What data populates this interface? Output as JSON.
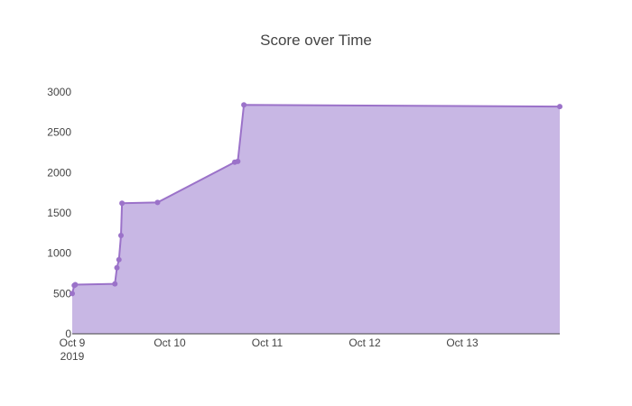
{
  "chart_data": {
    "type": "area",
    "title": "Score over Time",
    "xlabel": "",
    "ylabel": "",
    "xlim": [
      "2019-10-09T00:00",
      "2019-10-14T00:00"
    ],
    "ylim": [
      0,
      3000
    ],
    "grid": false,
    "legend": "none",
    "colors": {
      "line": "#9b72c9",
      "fill": "#c8b7e4",
      "marker": "#9b72c9",
      "axis": "#444444"
    },
    "x_ticks": [
      {
        "value": "2019-10-09T00:00",
        "label": "Oct 9",
        "sublabel": "2019"
      },
      {
        "value": "2019-10-10T00:00",
        "label": "Oct 10"
      },
      {
        "value": "2019-10-11T00:00",
        "label": "Oct 11"
      },
      {
        "value": "2019-10-12T00:00",
        "label": "Oct 12"
      },
      {
        "value": "2019-10-13T00:00",
        "label": "Oct 13"
      }
    ],
    "y_ticks": [
      0,
      500,
      1000,
      1500,
      2000,
      2500,
      3000
    ],
    "series": [
      {
        "points": [
          {
            "x": "2019-10-09T00:00",
            "y": 500
          },
          {
            "x": "2019-10-09T00:30",
            "y": 600
          },
          {
            "x": "2019-10-09T00:45",
            "y": 610
          },
          {
            "x": "2019-10-09T10:30",
            "y": 620
          },
          {
            "x": "2019-10-09T11:00",
            "y": 820
          },
          {
            "x": "2019-10-09T11:30",
            "y": 920
          },
          {
            "x": "2019-10-09T12:00",
            "y": 1220
          },
          {
            "x": "2019-10-09T12:15",
            "y": 1620
          },
          {
            "x": "2019-10-09T21:00",
            "y": 1630
          },
          {
            "x": "2019-10-10T16:00",
            "y": 2130
          },
          {
            "x": "2019-10-10T16:45",
            "y": 2140
          },
          {
            "x": "2019-10-10T18:15",
            "y": 2840
          },
          {
            "x": "2019-10-14T00:00",
            "y": 2820
          }
        ]
      }
    ]
  }
}
